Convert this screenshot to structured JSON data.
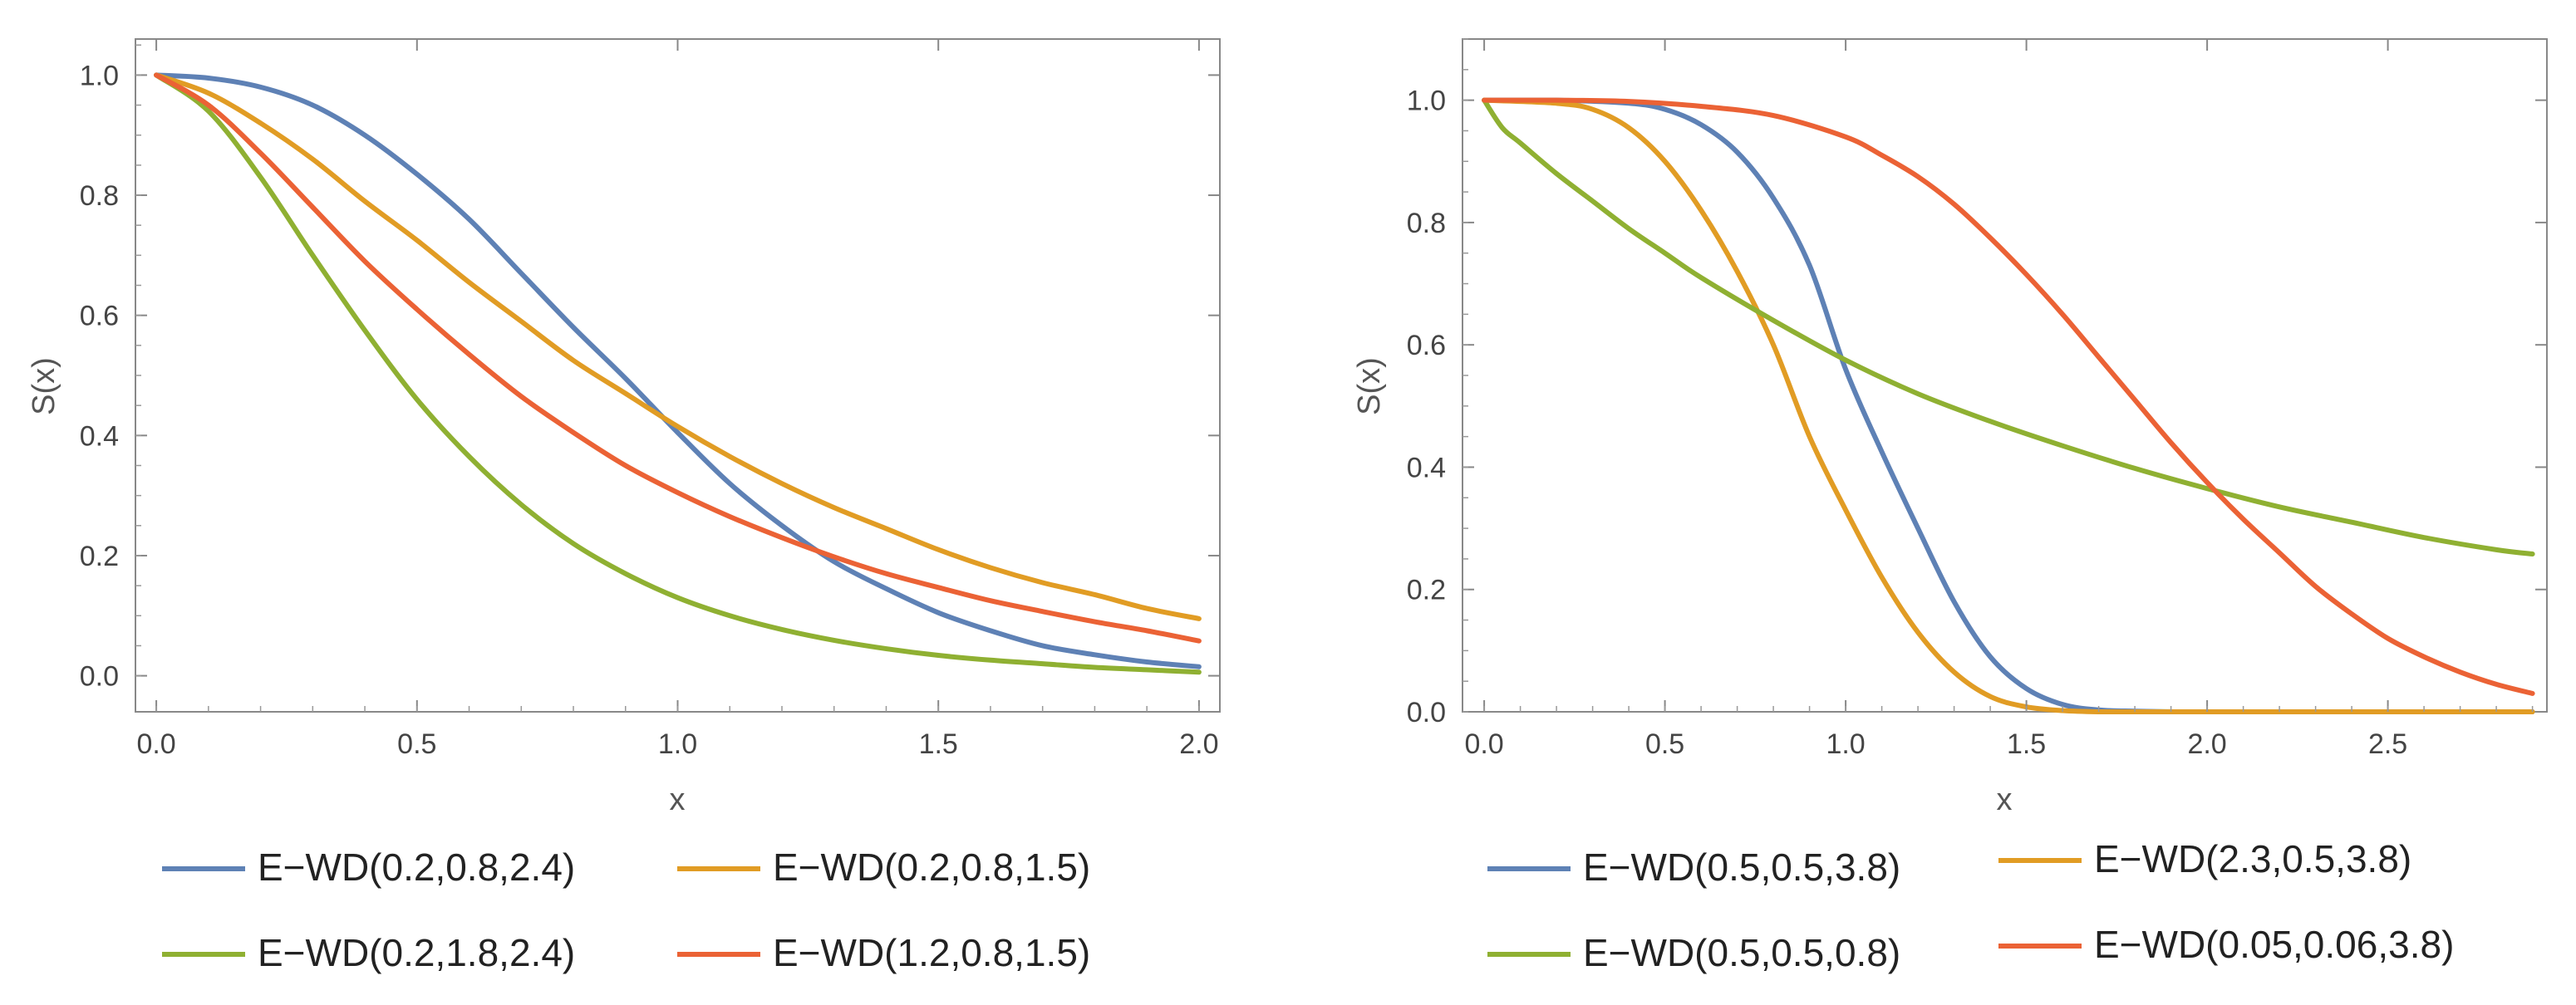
{
  "chart_data": [
    {
      "type": "line",
      "xlabel": "x",
      "ylabel": "S(x)",
      "xlim": [
        -0.04,
        2.04
      ],
      "ylim": [
        -0.06,
        1.06
      ],
      "xticks": [
        0.0,
        0.5,
        1.0,
        1.5,
        2.0
      ],
      "xtick_labels": [
        "0.0",
        "0.5",
        "1.0",
        "1.5",
        "2.0"
      ],
      "yticks": [
        0.0,
        0.2,
        0.4,
        0.6,
        0.8,
        1.0
      ],
      "ytick_labels": [
        "0.0",
        "0.2",
        "0.4",
        "0.6",
        "0.8",
        "1.0"
      ],
      "x_domain": [
        0,
        2
      ],
      "series": [
        {
          "name": "E−WD(0.2,0.8,2.4)",
          "color": "#5E81B5",
          "x": [
            0,
            0.1,
            0.2,
            0.3,
            0.4,
            0.5,
            0.6,
            0.7,
            0.8,
            0.9,
            1.0,
            1.1,
            1.2,
            1.3,
            1.4,
            1.5,
            1.6,
            1.7,
            1.8,
            1.9,
            2.0
          ],
          "y": [
            1.0,
            0.995,
            0.98,
            0.95,
            0.9,
            0.835,
            0.76,
            0.67,
            0.58,
            0.495,
            0.405,
            0.32,
            0.25,
            0.19,
            0.145,
            0.105,
            0.075,
            0.05,
            0.035,
            0.023,
            0.015
          ]
        },
        {
          "name": "E−WD(0.2,0.8,1.5)",
          "color": "#E19C24",
          "x": [
            0,
            0.1,
            0.2,
            0.3,
            0.4,
            0.5,
            0.6,
            0.7,
            0.8,
            0.9,
            1.0,
            1.1,
            1.2,
            1.3,
            1.4,
            1.5,
            1.6,
            1.7,
            1.8,
            1.9,
            2.0
          ],
          "y": [
            1.0,
            0.97,
            0.92,
            0.86,
            0.79,
            0.725,
            0.655,
            0.59,
            0.525,
            0.47,
            0.415,
            0.365,
            0.32,
            0.28,
            0.245,
            0.21,
            0.18,
            0.155,
            0.135,
            0.112,
            0.095
          ]
        },
        {
          "name": "E−WD(0.2,1.8,2.4)",
          "color": "#8FB032",
          "x": [
            0,
            0.1,
            0.2,
            0.3,
            0.4,
            0.5,
            0.6,
            0.7,
            0.8,
            0.9,
            1.0,
            1.1,
            1.2,
            1.3,
            1.4,
            1.5,
            1.6,
            1.7,
            1.8,
            1.9,
            2.0
          ],
          "y": [
            1.0,
            0.94,
            0.83,
            0.7,
            0.575,
            0.46,
            0.365,
            0.285,
            0.22,
            0.17,
            0.13,
            0.1,
            0.077,
            0.059,
            0.045,
            0.034,
            0.026,
            0.02,
            0.014,
            0.01,
            0.006
          ]
        },
        {
          "name": "E−WD(1.2,0.8,1.5)",
          "color": "#EB6235",
          "x": [
            0,
            0.1,
            0.2,
            0.3,
            0.4,
            0.5,
            0.6,
            0.7,
            0.8,
            0.9,
            1.0,
            1.1,
            1.2,
            1.3,
            1.4,
            1.5,
            1.6,
            1.7,
            1.8,
            1.9,
            2.0
          ],
          "y": [
            1.0,
            0.95,
            0.87,
            0.78,
            0.69,
            0.61,
            0.535,
            0.465,
            0.405,
            0.35,
            0.305,
            0.265,
            0.23,
            0.198,
            0.17,
            0.147,
            0.125,
            0.107,
            0.09,
            0.075,
            0.058
          ]
        }
      ]
    },
    {
      "type": "line",
      "xlabel": "x",
      "ylabel": "S(x)",
      "xlim": [
        -0.06,
        2.94
      ],
      "ylim": [
        0.0,
        1.1
      ],
      "xticks": [
        0.0,
        0.5,
        1.0,
        1.5,
        2.0,
        2.5
      ],
      "xtick_labels": [
        "0.0",
        "0.5",
        "1.0",
        "1.5",
        "2.0",
        "2.5"
      ],
      "yticks": [
        0.0,
        0.2,
        0.4,
        0.6,
        0.8,
        1.0
      ],
      "ytick_labels": [
        "0.0",
        "0.2",
        "0.4",
        "0.6",
        "0.8",
        "1.0"
      ],
      "x_domain": [
        0,
        2.9
      ],
      "series": [
        {
          "name": "E−WD(0.5,0.5,3.8)",
          "color": "#5E81B5",
          "x": [
            0,
            0.2,
            0.4,
            0.5,
            0.6,
            0.7,
            0.8,
            0.9,
            1.0,
            1.1,
            1.2,
            1.3,
            1.4,
            1.5,
            1.6,
            1.7,
            1.8,
            1.9,
            2.0,
            2.5,
            2.9
          ],
          "y": [
            1.0,
            1.0,
            0.995,
            0.985,
            0.96,
            0.915,
            0.84,
            0.73,
            0.56,
            0.425,
            0.3,
            0.18,
            0.09,
            0.038,
            0.012,
            0.003,
            0.001,
            0.0,
            0.0,
            0.0,
            0.0
          ]
        },
        {
          "name": "E−WD(2.3,0.5,3.8)",
          "color": "#E19C24",
          "x": [
            0,
            0.2,
            0.3,
            0.4,
            0.5,
            0.6,
            0.7,
            0.8,
            0.9,
            1.0,
            1.1,
            1.2,
            1.3,
            1.4,
            1.5,
            1.6,
            1.7,
            1.8,
            2.0,
            2.5,
            2.9
          ],
          "y": [
            1.0,
            0.995,
            0.985,
            0.955,
            0.9,
            0.82,
            0.72,
            0.6,
            0.45,
            0.33,
            0.22,
            0.13,
            0.065,
            0.025,
            0.008,
            0.002,
            0.0,
            0.0,
            0.0,
            0.0,
            0.0
          ]
        },
        {
          "name": "E−WD(0.5,0.5,0.8)",
          "color": "#8FB032",
          "x": [
            0,
            0.05,
            0.1,
            0.2,
            0.3,
            0.4,
            0.5,
            0.6,
            0.8,
            1.0,
            1.2,
            1.4,
            1.6,
            1.8,
            2.0,
            2.2,
            2.4,
            2.6,
            2.8,
            2.9
          ],
          "y": [
            1.0,
            0.955,
            0.93,
            0.88,
            0.835,
            0.79,
            0.75,
            0.71,
            0.64,
            0.575,
            0.52,
            0.475,
            0.435,
            0.398,
            0.365,
            0.335,
            0.31,
            0.285,
            0.265,
            0.258
          ]
        },
        {
          "name": "E−WD(0.05,0.06,3.8)",
          "color": "#EB6235",
          "x": [
            0,
            0.2,
            0.4,
            0.6,
            0.8,
            1.0,
            1.1,
            1.2,
            1.3,
            1.4,
            1.5,
            1.6,
            1.7,
            1.8,
            1.9,
            2.0,
            2.1,
            2.2,
            2.3,
            2.4,
            2.5,
            2.6,
            2.7,
            2.8,
            2.9
          ],
          "y": [
            1.0,
            1.0,
            0.998,
            0.99,
            0.975,
            0.94,
            0.91,
            0.875,
            0.83,
            0.775,
            0.715,
            0.65,
            0.58,
            0.51,
            0.44,
            0.375,
            0.315,
            0.26,
            0.205,
            0.16,
            0.12,
            0.09,
            0.065,
            0.045,
            0.03
          ]
        }
      ]
    }
  ]
}
